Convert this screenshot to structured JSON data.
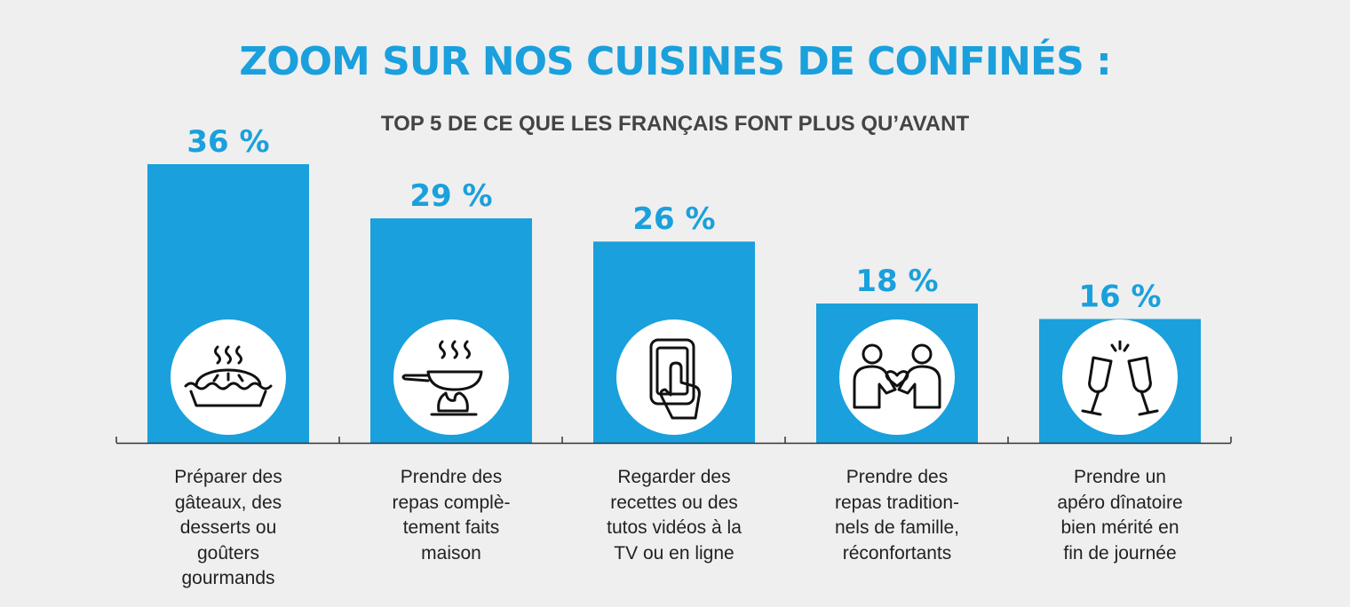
{
  "header": {
    "title": "ZOOM SUR NOS CUISINES DE CONFINÉS :",
    "subtitle": "TOP 5 DE CE QUE LES FRANÇAIS FONT PLUS QU’AVANT"
  },
  "colors": {
    "accent": "#1aa0dc",
    "background": "#efefef",
    "axis": "#333333"
  },
  "chart_data": {
    "type": "bar",
    "title": "ZOOM SUR NOS CUISINES DE CONFINÉS :",
    "subtitle": "TOP 5 DE CE QUE LES FRANÇAIS FONT PLUS QU’AVANT",
    "unit": "%",
    "ylim": [
      0,
      36
    ],
    "grid": false,
    "categories": [
      "Préparer des\ngâteaux, des\ndesserts ou\ngoûters\ngourmands",
      "Prendre des\nrepas complè-\ntement faits\nmaison",
      "Regarder des\nrecettes ou des\ntutos vidéos à la\nTV ou en ligne",
      "Prendre des\nrepas tradition-\nnels de famille,\nréconfortants",
      "Prendre un\napéro dînatoire\nbien mérité en\nfin de journée"
    ],
    "values": [
      36,
      29,
      26,
      18,
      16
    ],
    "value_labels": [
      "36 %",
      "29 %",
      "26 %",
      "18 %",
      "16 %"
    ],
    "icons": [
      "pie-icon",
      "frying-pan-icon",
      "smartphone-touch-icon",
      "family-heart-icon",
      "champagne-glasses-icon"
    ]
  }
}
